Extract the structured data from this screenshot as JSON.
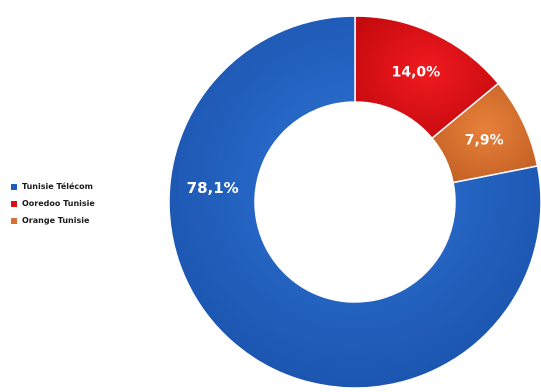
{
  "chart_data": {
    "type": "pie",
    "donut": true,
    "categories": [
      "Tunisie Télécom",
      "Ooredoo Tunisie",
      "Orange Tunisie"
    ],
    "values": [
      78.1,
      14.0,
      7.9
    ],
    "value_labels": [
      "78,1%",
      "14,0%",
      "7,9%"
    ],
    "colors": [
      "#1d5cbd",
      "#e00d12",
      "#d9702e"
    ],
    "start_angle_deg": 0,
    "direction": "clockwise",
    "legend": {
      "position": "left",
      "items": [
        "Tunisie Télécom",
        "Ooredoo Tunisie",
        "Orange Tunisie"
      ]
    }
  }
}
